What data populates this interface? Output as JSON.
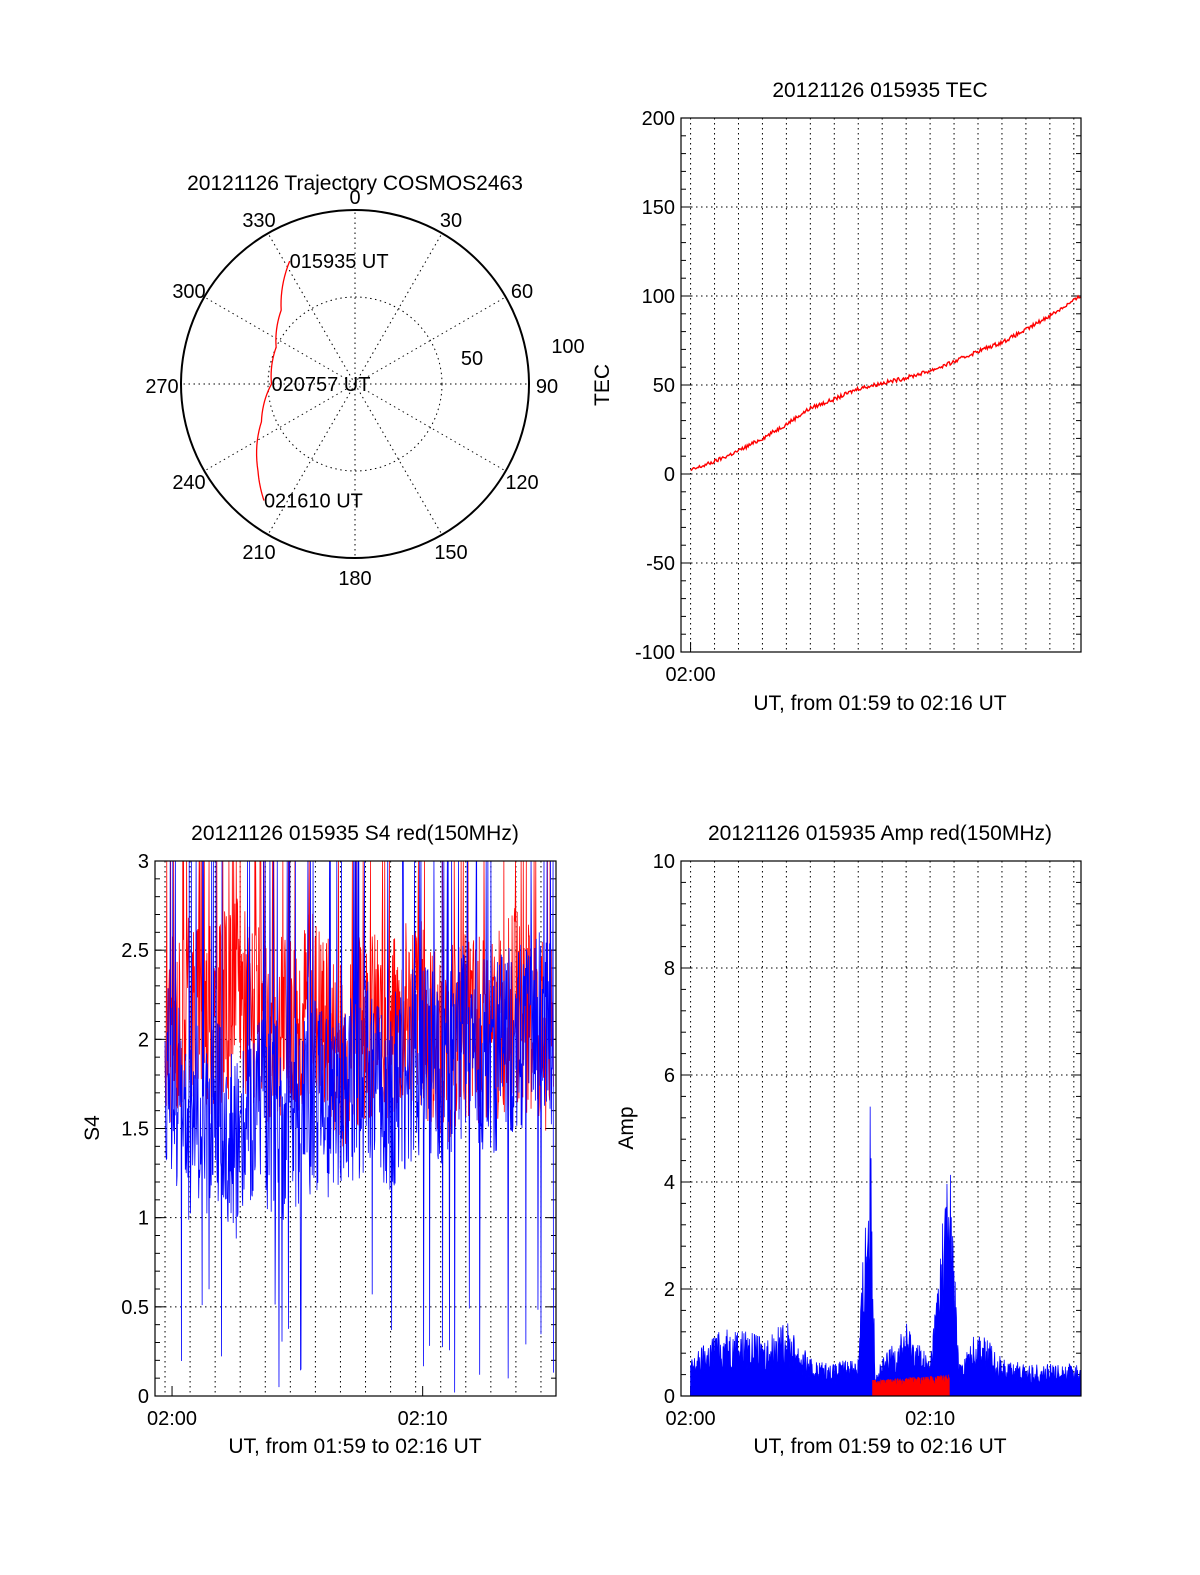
{
  "chart_data": [
    {
      "id": "trajectory",
      "type": "polar",
      "title": "20121126 Trajectory COSMOS2463",
      "azimuth_labels": [
        "0",
        "30",
        "60",
        "90",
        "120",
        "150",
        "180",
        "210",
        "240",
        "270",
        "300",
        "330"
      ],
      "radial_labels": [
        "50",
        "100"
      ],
      "series": [
        {
          "color": "#ff0000",
          "points": [
            {
              "az": 332,
              "zenith": 80
            },
            {
              "az": 315,
              "zenith": 60
            },
            {
              "az": 295,
              "zenith": 50
            },
            {
              "az": 270,
              "zenith": 48
            },
            {
              "az": 248,
              "zenith": 58
            },
            {
              "az": 228,
              "zenith": 75
            },
            {
              "az": 218,
              "zenith": 85
            }
          ]
        }
      ],
      "annotations": [
        {
          "text": "015935 UT",
          "az": 332,
          "zenith": 80
        },
        {
          "text": "020757 UT",
          "az": 270,
          "zenith": 48
        },
        {
          "text": "021610 UT",
          "az": 218,
          "zenith": 85
        }
      ]
    },
    {
      "id": "tec",
      "type": "line",
      "title": "20121126 015935 TEC",
      "xlabel": "UT, from 01:59 to 02:16 UT",
      "ylabel": "TEC",
      "xlim": [
        1.6,
        18.3
      ],
      "ylim": [
        -100,
        200
      ],
      "yticks": [
        -100,
        -50,
        0,
        50,
        100,
        150,
        200
      ],
      "xticks": [
        {
          "value": 2,
          "label": "02:00"
        }
      ],
      "grid": true,
      "series": [
        {
          "color": "#ff0000",
          "x": [
            2.0,
            3.0,
            4.0,
            5.0,
            6.0,
            7.0,
            8.0,
            9.0,
            10.0,
            11.0,
            12.0,
            13.0,
            14.0,
            15.0,
            16.0,
            17.0,
            18.3
          ],
          "y": [
            2,
            7,
            13,
            20,
            28,
            37,
            42,
            48,
            51,
            54,
            58,
            63,
            69,
            74,
            81,
            89,
            100
          ]
        }
      ]
    },
    {
      "id": "s4",
      "type": "line",
      "title": "20121126 015935 S4 red(150MHz)",
      "xlabel": "UT, from 01:59 to 02:16 UT",
      "ylabel": "S4",
      "xlim": [
        0.6,
        16.6
      ],
      "ylim": [
        0,
        3
      ],
      "yticks": [
        0,
        0.5,
        1,
        1.5,
        2,
        2.5,
        3
      ],
      "xticks": [
        {
          "value": 1.28,
          "label": "02:00"
        },
        {
          "value": 11.28,
          "label": "02:10"
        }
      ],
      "grid": true,
      "series": [
        {
          "color": "#ff0000",
          "x": [
            1.0,
            2.0,
            3.0,
            4.0,
            5.0,
            6.0,
            7.0,
            8.0,
            9.0,
            10.0,
            11.0,
            12.0,
            13.0,
            14.0,
            15.0,
            16.0,
            16.5
          ],
          "y": [
            2.0,
            2.2,
            2.1,
            2.3,
            2.0,
            2.1,
            2.2,
            1.9,
            2.1,
            2.0,
            2.2,
            1.9,
            2.1,
            2.0,
            2.2,
            2.0,
            2.1
          ]
        },
        {
          "color": "#0000ff",
          "x": [
            1.0,
            2.0,
            3.0,
            4.0,
            5.0,
            6.0,
            7.0,
            8.0,
            9.0,
            10.0,
            11.0,
            12.0,
            13.0,
            14.0,
            15.0,
            16.0,
            16.5
          ],
          "y": [
            1.8,
            1.5,
            1.6,
            1.4,
            1.6,
            1.5,
            1.7,
            1.6,
            1.8,
            1.7,
            1.9,
            1.8,
            2.0,
            1.9,
            2.0,
            2.1,
            2.0
          ]
        }
      ]
    },
    {
      "id": "amp",
      "type": "line",
      "title": "20121126 015935 Amp red(150MHz)",
      "xlabel": "UT, from 01:59 to 02:16 UT",
      "ylabel": "Amp",
      "xlim": [
        1.6,
        18.3
      ],
      "ylim": [
        0,
        10
      ],
      "yticks": [
        0,
        2,
        4,
        6,
        8,
        10
      ],
      "xticks": [
        {
          "value": 2,
          "label": "02:00"
        },
        {
          "value": 12,
          "label": "02:10"
        }
      ],
      "grid": true,
      "series": [
        {
          "color": "#0000ff",
          "x": [
            2.0,
            3.0,
            4.0,
            5.0,
            6.0,
            7.0,
            8.0,
            9.0,
            9.5,
            9.7,
            10.0,
            11.0,
            12.0,
            12.8,
            13.2,
            14.0,
            15.0,
            16.0,
            17.0,
            18.3
          ],
          "y": [
            0.7,
            1.2,
            1.3,
            1.1,
            1.4,
            0.7,
            0.6,
            0.8,
            5.5,
            0.6,
            0.7,
            1.4,
            0.7,
            4.8,
            0.6,
            1.3,
            0.7,
            0.6,
            0.6,
            0.6
          ]
        },
        {
          "color": "#ff0000",
          "x": [
            9.6,
            12.8
          ],
          "y": [
            0.3,
            0.4
          ]
        }
      ]
    }
  ]
}
